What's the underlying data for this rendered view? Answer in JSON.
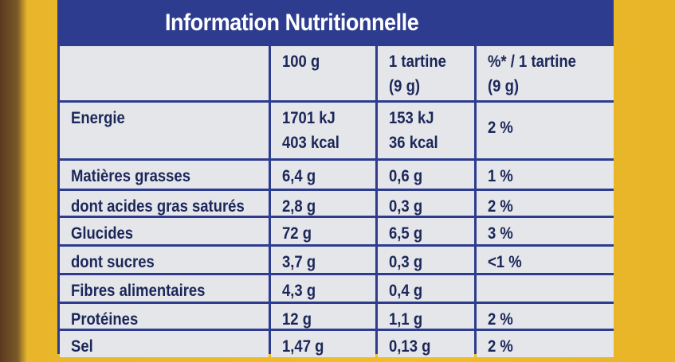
{
  "header": {
    "title": "Information Nutritionnelle"
  },
  "table": {
    "columns": [
      [
        "100 g"
      ],
      [
        "1 tartine",
        "(9 g)"
      ],
      [
        "%* / 1 tartine",
        "(9 g)"
      ]
    ],
    "rows": [
      {
        "label": "Energie",
        "values": [
          [
            "1701 kJ",
            "403 kcal"
          ],
          [
            "153 kJ",
            "36 kcal"
          ],
          [
            "2 %"
          ]
        ]
      },
      {
        "label": "Matières grasses",
        "values": [
          [
            "6,4 g"
          ],
          [
            "0,6 g"
          ],
          [
            "1 %"
          ]
        ]
      },
      {
        "label": "dont acides gras saturés",
        "values": [
          [
            "2,8 g"
          ],
          [
            "0,3 g"
          ],
          [
            "2 %"
          ]
        ]
      },
      {
        "label": "Glucides",
        "values": [
          [
            "72 g"
          ],
          [
            "6,5 g"
          ],
          [
            "3 %"
          ]
        ]
      },
      {
        "label": "dont sucres",
        "values": [
          [
            "3,7 g"
          ],
          [
            "0,3 g"
          ],
          [
            "<1 %"
          ]
        ]
      },
      {
        "label": "Fibres alimentaires",
        "values": [
          [
            "4,3 g"
          ],
          [
            "0,4 g"
          ]
        ]
      },
      {
        "label": "Protéines",
        "values": [
          [
            "12 g"
          ],
          [
            "1,1 g"
          ],
          [
            "2 %"
          ]
        ]
      },
      {
        "label": "Sel",
        "values": [
          [
            "1,47 g"
          ],
          [
            "0,13 g"
          ],
          [
            "2 %"
          ]
        ]
      }
    ]
  }
}
